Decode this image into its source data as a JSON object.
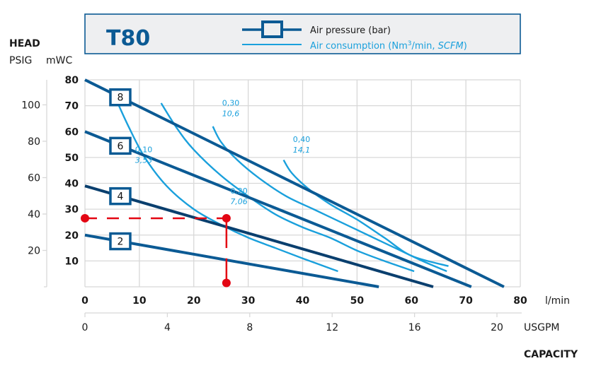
{
  "chart_data": {
    "type": "line",
    "title": "T80",
    "header_labels": {
      "head": "HEAD",
      "psig": "PSIG",
      "mwc": "mWC",
      "capacity": "CAPACITY",
      "x_unit_primary": "l/min",
      "x_unit_secondary": "USGPM"
    },
    "legend": {
      "pressure_label": "Air pressure (bar)",
      "consumption_label_prefix": "Air consumption (Nm",
      "consumption_label_sup": "3",
      "consumption_label_mid": "/min, ",
      "consumption_label_italic": "SCFM",
      "consumption_label_suffix": ")",
      "placement": "top-right"
    },
    "xlim": [
      0,
      80
    ],
    "ylim": [
      0,
      80
    ],
    "x_ticks": [
      "0",
      "10",
      "20",
      "30",
      "40",
      "50",
      "60",
      "70",
      "80"
    ],
    "x_tick_values": [
      0,
      10,
      20,
      30,
      40,
      50,
      60,
      70,
      80
    ],
    "x2_ticks": [
      "0",
      "4",
      "8",
      "12",
      "16",
      "20"
    ],
    "x2_tick_values": [
      0,
      4,
      8,
      12,
      16,
      20
    ],
    "y_ticks": [
      "10",
      "20",
      "30",
      "40",
      "50",
      "60",
      "70",
      "80"
    ],
    "y_tick_values": [
      10,
      20,
      30,
      40,
      50,
      60,
      70,
      80
    ],
    "y2_ticks": [
      "20",
      "40",
      "60",
      "80",
      "100"
    ],
    "y2_tick_values": [
      20,
      40,
      60,
      80,
      100
    ],
    "grid": true,
    "pressure_series": [
      {
        "name": "8",
        "x": [
          0,
          77
        ],
        "y": [
          80,
          0
        ],
        "label_at_x": 6.5
      },
      {
        "name": "6",
        "x": [
          0,
          71
        ],
        "y": [
          60,
          0
        ],
        "label_at_x": 6.5
      },
      {
        "name": "4",
        "x": [
          0,
          64
        ],
        "y": [
          39,
          0
        ],
        "label_at_x": 6.5
      },
      {
        "name": "2",
        "x": [
          0,
          54
        ],
        "y": [
          20,
          0
        ],
        "label_at_x": 6.5
      }
    ],
    "consumption_series": [
      {
        "name": "0,10",
        "italic": "3,53",
        "x": [
          5.6,
          8,
          11,
          15,
          20,
          25,
          30,
          35,
          40,
          46.5
        ],
        "y": [
          73,
          62,
          50,
          39,
          30,
          24,
          19,
          15,
          11,
          6
        ]
      },
      {
        "name": "0,20",
        "italic": "7,06",
        "x": [
          14,
          17,
          20,
          25,
          30,
          35,
          40,
          45,
          50,
          55,
          60.5
        ],
        "y": [
          71,
          61,
          53,
          43,
          35,
          28,
          23,
          19,
          14,
          10,
          6
        ]
      },
      {
        "name": "0,30",
        "italic": "10,6",
        "x": [
          23.5,
          25,
          28,
          32,
          37,
          42,
          47,
          52,
          57,
          62,
          66.5
        ],
        "y": [
          62,
          56,
          49,
          42,
          35,
          30,
          25,
          20,
          15,
          10,
          6
        ]
      },
      {
        "name": "0,40",
        "italic": "14,1",
        "x": [
          36.5,
          38,
          41,
          45,
          50,
          55,
          60,
          66.8
        ],
        "y": [
          49,
          44,
          38,
          32,
          26,
          19,
          12,
          8
        ]
      }
    ],
    "operating_point": {
      "x": 26,
      "y": 26.5,
      "color": "#e30613"
    }
  },
  "colors": {
    "pressure": "#0b5a94",
    "pressure_dark": "#0a3f6e",
    "consumption": "#1aa0dc",
    "grid": "#d8d8d8",
    "header_bg": "#eeeff1",
    "marker": "#e30613"
  }
}
